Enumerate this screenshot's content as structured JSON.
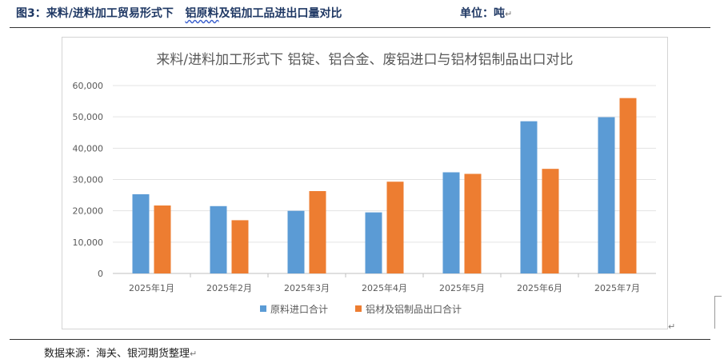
{
  "figure": {
    "label": "图3：来料/进料加工贸易形式下",
    "title_underlined": "铝原料",
    "title_rest": "及铝加工品进出口量对比",
    "unit": "单位：吨"
  },
  "source": "数据来源：海关、银河期货整理",
  "chart_data": {
    "type": "bar",
    "title": "来料/进料加工形式下 铝锭、铝合金、废铝进口与铝材铝制品出口对比",
    "categories": [
      "2025年1月",
      "2025年2月",
      "2025年3月",
      "2025年4月",
      "2025年5月",
      "2025年6月",
      "2025年7月"
    ],
    "series": [
      {
        "name": "原料进口合计",
        "color": "#5b9bd5",
        "values": [
          25300,
          21500,
          20000,
          19500,
          32300,
          48600,
          49900
        ]
      },
      {
        "name": "铝材及铝制品出口合计",
        "color": "#ed7d31",
        "values": [
          21700,
          17000,
          26300,
          29300,
          31800,
          33400,
          56000
        ]
      }
    ],
    "yticks": [
      "0",
      "10,000",
      "20,000",
      "30,000",
      "40,000",
      "50,000",
      "60,000"
    ],
    "ylim": [
      0,
      60000
    ],
    "grid": true,
    "legend": "bottom"
  }
}
